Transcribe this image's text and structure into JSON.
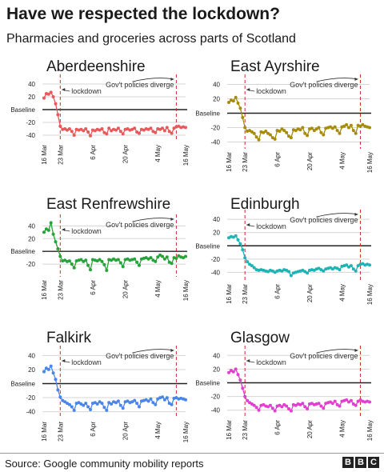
{
  "title": "Have we respected the lockdown?",
  "subtitle": "Pharmacies and groceries across parts of Scotland",
  "source": "Source: Google community mobility reports",
  "logo": [
    "B",
    "B",
    "C"
  ],
  "annotations": {
    "lockdown": "lockdown",
    "policies": "Gov't policies diverge"
  },
  "colors": {
    "Aberdeenshire": "#e8595b",
    "East Ayrshire": "#a68c09",
    "East Renfrewshire": "#27a33a",
    "Edinburgh": "#1fb3b3",
    "Falkirk": "#4a86e8",
    "Glasgow": "#e23fd0",
    "baseline": "#222222",
    "event_line": "#d62728",
    "grid": "#d5d5d5"
  },
  "chart_data": [
    {
      "type": "line",
      "title": "Aberdeenshire",
      "baseline_label": "Baseline",
      "yticks": [
        40,
        20,
        -20,
        -40
      ],
      "ylim": [
        -45,
        45
      ],
      "xticks": [
        "16 Mar",
        "23 Mar",
        "6 Apr",
        "20 Apr",
        "4 May",
        "16 May"
      ],
      "x": [
        "16 Mar",
        "17 Mar",
        "18 Mar",
        "19 Mar",
        "20 Mar",
        "21 Mar",
        "22 Mar",
        "23 Mar",
        "24 Mar",
        "25 Mar",
        "26 Mar",
        "27 Mar",
        "28 Mar",
        "29 Mar",
        "30 Mar",
        "31 Mar",
        "1 Apr",
        "2 Apr",
        "3 Apr",
        "4 Apr",
        "5 Apr",
        "6 Apr",
        "7 Apr",
        "8 Apr",
        "9 Apr",
        "10 Apr",
        "11 Apr",
        "12 Apr",
        "13 Apr",
        "14 Apr",
        "15 Apr",
        "16 Apr",
        "17 Apr",
        "18 Apr",
        "19 Apr",
        "20 Apr",
        "21 Apr",
        "22 Apr",
        "23 Apr",
        "24 Apr",
        "25 Apr",
        "26 Apr",
        "27 Apr",
        "28 Apr",
        "29 Apr",
        "30 Apr",
        "1 May",
        "2 May",
        "3 May",
        "4 May",
        "5 May",
        "6 May",
        "7 May",
        "8 May",
        "9 May",
        "10 May",
        "11 May",
        "12 May",
        "13 May",
        "14 May",
        "15 May",
        "16 May"
      ],
      "values": [
        18,
        25,
        24,
        27,
        20,
        9,
        -8,
        -26,
        -31,
        -30,
        -32,
        -30,
        -34,
        -40,
        -31,
        -32,
        -31,
        -33,
        -30,
        -35,
        -41,
        -32,
        -33,
        -31,
        -32,
        -30,
        -36,
        -38,
        -29,
        -33,
        -31,
        -32,
        -29,
        -34,
        -38,
        -31,
        -30,
        -32,
        -31,
        -29,
        -35,
        -37,
        -31,
        -32,
        -30,
        -31,
        -29,
        -34,
        -36,
        -30,
        -31,
        -29,
        -33,
        -28,
        -34,
        -37,
        -29,
        -27,
        -26,
        -28,
        -27,
        -28
      ]
    },
    {
      "type": "line",
      "title": "East Ayrshire",
      "baseline_label": "Baseline",
      "yticks": [
        40,
        20,
        -20,
        -40
      ],
      "ylim": [
        -45,
        45
      ],
      "xticks": [
        "16 Mar",
        "23 Mar",
        "6 Apr",
        "20 Apr",
        "4 May",
        "16 May"
      ],
      "x": [
        "16 Mar",
        "17 Mar",
        "18 Mar",
        "19 Mar",
        "20 Mar",
        "21 Mar",
        "22 Mar",
        "23 Mar",
        "24 Mar",
        "25 Mar",
        "26 Mar",
        "27 Mar",
        "28 Mar",
        "29 Mar",
        "30 Mar",
        "31 Mar",
        "1 Apr",
        "2 Apr",
        "3 Apr",
        "4 Apr",
        "5 Apr",
        "6 Apr",
        "7 Apr",
        "8 Apr",
        "9 Apr",
        "10 Apr",
        "11 Apr",
        "12 Apr",
        "13 Apr",
        "14 Apr",
        "15 Apr",
        "16 Apr",
        "17 Apr",
        "18 Apr",
        "19 Apr",
        "20 Apr",
        "21 Apr",
        "22 Apr",
        "23 Apr",
        "24 Apr",
        "25 Apr",
        "26 Apr",
        "27 Apr",
        "28 Apr",
        "29 Apr",
        "30 Apr",
        "1 May",
        "2 May",
        "3 May",
        "4 May",
        "5 May",
        "6 May",
        "7 May",
        "8 May",
        "9 May",
        "10 May",
        "11 May",
        "12 May",
        "13 May",
        "14 May",
        "15 May",
        "16 May"
      ],
      "values": [
        15,
        18,
        17,
        22,
        14,
        7,
        -6,
        -20,
        -25,
        -24,
        -26,
        -28,
        -33,
        -37,
        -26,
        -27,
        -25,
        -28,
        -30,
        -34,
        -36,
        -24,
        -25,
        -22,
        -24,
        -27,
        -32,
        -34,
        -23,
        -24,
        -22,
        -23,
        -20,
        -28,
        -31,
        -22,
        -21,
        -24,
        -22,
        -20,
        -27,
        -30,
        -21,
        -20,
        -19,
        -21,
        -19,
        -24,
        -28,
        -19,
        -18,
        -16,
        -20,
        -17,
        -24,
        -28,
        -17,
        -18,
        -16,
        -18,
        -19,
        -20
      ]
    },
    {
      "type": "line",
      "title": "East Renfrewshire",
      "baseline_label": "Baseline",
      "yticks": [
        40,
        20,
        -20
      ],
      "ylim": [
        -35,
        48
      ],
      "xticks": [
        "16 Mar",
        "23 Mar",
        "6 Apr",
        "20 Apr",
        "4 May",
        "16 May"
      ],
      "x": [
        "16 Mar",
        "17 Mar",
        "18 Mar",
        "19 Mar",
        "20 Mar",
        "21 Mar",
        "22 Mar",
        "23 Mar",
        "24 Mar",
        "25 Mar",
        "26 Mar",
        "27 Mar",
        "28 Mar",
        "29 Mar",
        "30 Mar",
        "31 Mar",
        "1 Apr",
        "2 Apr",
        "3 Apr",
        "4 Apr",
        "5 Apr",
        "6 Apr",
        "7 Apr",
        "8 Apr",
        "9 Apr",
        "10 Apr",
        "11 Apr",
        "12 Apr",
        "13 Apr",
        "14 Apr",
        "15 Apr",
        "16 Apr",
        "17 Apr",
        "18 Apr",
        "19 Apr",
        "20 Apr",
        "21 Apr",
        "22 Apr",
        "23 Apr",
        "24 Apr",
        "25 Apr",
        "26 Apr",
        "27 Apr",
        "28 Apr",
        "29 Apr",
        "30 Apr",
        "1 May",
        "2 May",
        "3 May",
        "4 May",
        "5 May",
        "6 May",
        "7 May",
        "8 May",
        "9 May",
        "10 May",
        "11 May",
        "12 May",
        "13 May",
        "14 May",
        "15 May",
        "16 May"
      ],
      "values": [
        30,
        35,
        33,
        45,
        27,
        15,
        4,
        -8,
        -15,
        -14,
        -16,
        -15,
        -20,
        -26,
        -15,
        -14,
        -13,
        -16,
        -14,
        -22,
        -29,
        -13,
        -14,
        -15,
        -13,
        -16,
        -21,
        -30,
        -13,
        -14,
        -12,
        -14,
        -13,
        -18,
        -24,
        -13,
        -12,
        -14,
        -13,
        -12,
        -17,
        -22,
        -12,
        -11,
        -10,
        -12,
        -10,
        -14,
        -16,
        -9,
        -6,
        -8,
        -12,
        -9,
        -17,
        -19,
        -10,
        -11,
        -7,
        -9,
        -10,
        -8
      ]
    },
    {
      "type": "line",
      "title": "Edinburgh",
      "baseline_label": "Baseline",
      "yticks": [
        40,
        20,
        -20,
        -40
      ],
      "ylim": [
        -48,
        45
      ],
      "xticks": [
        "16 Mar",
        "23 Mar",
        "6 Apr",
        "20 Apr",
        "4 May",
        "16 May"
      ],
      "x": [
        "16 Mar",
        "17 Mar",
        "18 Mar",
        "19 Mar",
        "20 Mar",
        "21 Mar",
        "22 Mar",
        "23 Mar",
        "24 Mar",
        "25 Mar",
        "26 Mar",
        "27 Mar",
        "28 Mar",
        "29 Mar",
        "30 Mar",
        "31 Mar",
        "1 Apr",
        "2 Apr",
        "3 Apr",
        "4 Apr",
        "5 Apr",
        "6 Apr",
        "7 Apr",
        "8 Apr",
        "9 Apr",
        "10 Apr",
        "11 Apr",
        "12 Apr",
        "13 Apr",
        "14 Apr",
        "15 Apr",
        "16 Apr",
        "17 Apr",
        "18 Apr",
        "19 Apr",
        "20 Apr",
        "21 Apr",
        "22 Apr",
        "23 Apr",
        "24 Apr",
        "25 Apr",
        "26 Apr",
        "27 Apr",
        "28 Apr",
        "29 Apr",
        "30 Apr",
        "1 May",
        "2 May",
        "3 May",
        "4 May",
        "5 May",
        "6 May",
        "7 May",
        "8 May",
        "9 May",
        "10 May",
        "11 May",
        "12 May",
        "13 May",
        "14 May",
        "15 May",
        "16 May"
      ],
      "values": [
        12,
        14,
        13,
        15,
        9,
        3,
        -6,
        -18,
        -24,
        -28,
        -30,
        -33,
        -36,
        -37,
        -36,
        -37,
        -38,
        -39,
        -37,
        -38,
        -40,
        -38,
        -37,
        -38,
        -36,
        -37,
        -39,
        -45,
        -41,
        -40,
        -39,
        -38,
        -37,
        -39,
        -41,
        -37,
        -36,
        -37,
        -35,
        -34,
        -36,
        -38,
        -35,
        -34,
        -33,
        -35,
        -33,
        -34,
        -36,
        -31,
        -30,
        -29,
        -32,
        -30,
        -35,
        -38,
        -30,
        -28,
        -27,
        -29,
        -28,
        -29
      ]
    },
    {
      "type": "line",
      "title": "Falkirk",
      "baseline_label": "Baseline",
      "yticks": [
        40,
        20,
        -20,
        -40
      ],
      "ylim": [
        -45,
        45
      ],
      "xticks": [
        "16 Mar",
        "23 Mar",
        "6 Apr",
        "20 Apr",
        "4 May",
        "16 May"
      ],
      "x": [
        "16 Mar",
        "17 Mar",
        "18 Mar",
        "19 Mar",
        "20 Mar",
        "21 Mar",
        "22 Mar",
        "23 Mar",
        "24 Mar",
        "25 Mar",
        "26 Mar",
        "27 Mar",
        "28 Mar",
        "29 Mar",
        "30 Mar",
        "31 Mar",
        "1 Apr",
        "2 Apr",
        "3 Apr",
        "4 Apr",
        "5 Apr",
        "6 Apr",
        "7 Apr",
        "8 Apr",
        "9 Apr",
        "10 Apr",
        "11 Apr",
        "12 Apr",
        "13 Apr",
        "14 Apr",
        "15 Apr",
        "16 Apr",
        "17 Apr",
        "18 Apr",
        "19 Apr",
        "20 Apr",
        "21 Apr",
        "22 Apr",
        "23 Apr",
        "24 Apr",
        "25 Apr",
        "26 Apr",
        "27 Apr",
        "28 Apr",
        "29 Apr",
        "30 Apr",
        "1 May",
        "2 May",
        "3 May",
        "4 May",
        "5 May",
        "6 May",
        "7 May",
        "8 May",
        "9 May",
        "10 May",
        "11 May",
        "12 May",
        "13 May",
        "14 May",
        "15 May",
        "16 May"
      ],
      "values": [
        17,
        22,
        20,
        25,
        15,
        6,
        -9,
        -19,
        -24,
        -26,
        -28,
        -30,
        -33,
        -38,
        -28,
        -27,
        -29,
        -31,
        -28,
        -33,
        -37,
        -28,
        -27,
        -29,
        -26,
        -28,
        -34,
        -38,
        -27,
        -29,
        -26,
        -27,
        -25,
        -31,
        -35,
        -26,
        -25,
        -27,
        -26,
        -24,
        -28,
        -33,
        -25,
        -24,
        -23,
        -25,
        -22,
        -27,
        -30,
        -22,
        -20,
        -19,
        -23,
        -20,
        -28,
        -30,
        -21,
        -20,
        -22,
        -21,
        -22,
        -23
      ]
    },
    {
      "type": "line",
      "title": "Glasgow",
      "baseline_label": "Baseline",
      "yticks": [
        40,
        20,
        -20,
        -40
      ],
      "ylim": [
        -45,
        45
      ],
      "xticks": [
        "16 Mar",
        "23 Mar",
        "6 Apr",
        "20 Apr",
        "4 May",
        "16 May"
      ],
      "x": [
        "16 Mar",
        "17 Mar",
        "18 Mar",
        "19 Mar",
        "20 Mar",
        "21 Mar",
        "22 Mar",
        "23 Mar",
        "24 Mar",
        "25 Mar",
        "26 Mar",
        "27 Mar",
        "28 Mar",
        "29 Mar",
        "30 Mar",
        "31 Mar",
        "1 Apr",
        "2 Apr",
        "3 Apr",
        "4 Apr",
        "5 Apr",
        "6 Apr",
        "7 Apr",
        "8 Apr",
        "9 Apr",
        "10 Apr",
        "11 Apr",
        "12 Apr",
        "13 Apr",
        "14 Apr",
        "15 Apr",
        "16 Apr",
        "17 Apr",
        "18 Apr",
        "19 Apr",
        "20 Apr",
        "21 Apr",
        "22 Apr",
        "23 Apr",
        "24 Apr",
        "25 Apr",
        "26 Apr",
        "27 Apr",
        "28 Apr",
        "29 Apr",
        "30 Apr",
        "1 May",
        "2 May",
        "3 May",
        "4 May",
        "5 May",
        "6 May",
        "7 May",
        "8 May",
        "9 May",
        "10 May",
        "11 May",
        "12 May",
        "13 May",
        "14 May",
        "15 May",
        "16 May"
      ],
      "values": [
        15,
        18,
        16,
        20,
        12,
        4,
        -8,
        -20,
        -26,
        -29,
        -31,
        -33,
        -36,
        -40,
        -33,
        -32,
        -34,
        -35,
        -33,
        -37,
        -41,
        -34,
        -33,
        -35,
        -32,
        -34,
        -38,
        -41,
        -32,
        -33,
        -31,
        -32,
        -30,
        -35,
        -38,
        -31,
        -30,
        -32,
        -31,
        -30,
        -34,
        -37,
        -30,
        -29,
        -28,
        -30,
        -27,
        -32,
        -34,
        -27,
        -26,
        -25,
        -28,
        -26,
        -31,
        -33,
        -27,
        -25,
        -27,
        -28,
        -27,
        -28
      ]
    }
  ]
}
